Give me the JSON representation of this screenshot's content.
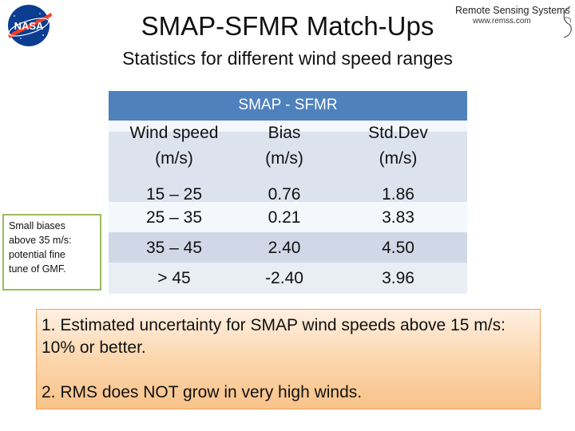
{
  "header": {
    "title": "SMAP-SFMR Match-Ups",
    "subtitle": "Statistics for different wind speed ranges"
  },
  "logos": {
    "nasa": {
      "text": "NASA",
      "icon": "nasa-meatball-icon"
    },
    "rss": {
      "name": "Remote Sensing Systems",
      "url": "www.remss.com",
      "icon": "rss-swirl-icon"
    }
  },
  "table": {
    "title": "SMAP - SFMR",
    "columns": [
      {
        "line1": "Wind speed",
        "line2": "(m/s)"
      },
      {
        "line1": "Bias",
        "line2": "(m/s)"
      },
      {
        "line1": "Std.Dev",
        "line2": "(m/s)"
      }
    ],
    "rows": [
      {
        "range": "15 – 25",
        "bias": "0.76",
        "std": "1.86"
      },
      {
        "range": "25 – 35",
        "bias": "0.21",
        "std": "3.83"
      },
      {
        "range": "35 – 45",
        "bias": "2.40",
        "std": "4.50"
      },
      {
        "range": "> 45",
        "bias": "-2.40",
        "std": "3.96"
      }
    ]
  },
  "side_note": {
    "lines": [
      "Small biases",
      "above 35 m/s:",
      "potential fine",
      "tune of GMF."
    ]
  },
  "callout": {
    "point1": "1. Estimated uncertainty for SMAP wind speeds above 15 m/s: 10% or better.",
    "point2": "2. RMS does NOT grow in very high winds."
  },
  "colors": {
    "header_blue": "#4f81bd",
    "note_border": "#9bbb59",
    "callout_orange": "#f9c38a",
    "nasa_blue": "#0b3d91",
    "nasa_red": "#fc3d21"
  }
}
